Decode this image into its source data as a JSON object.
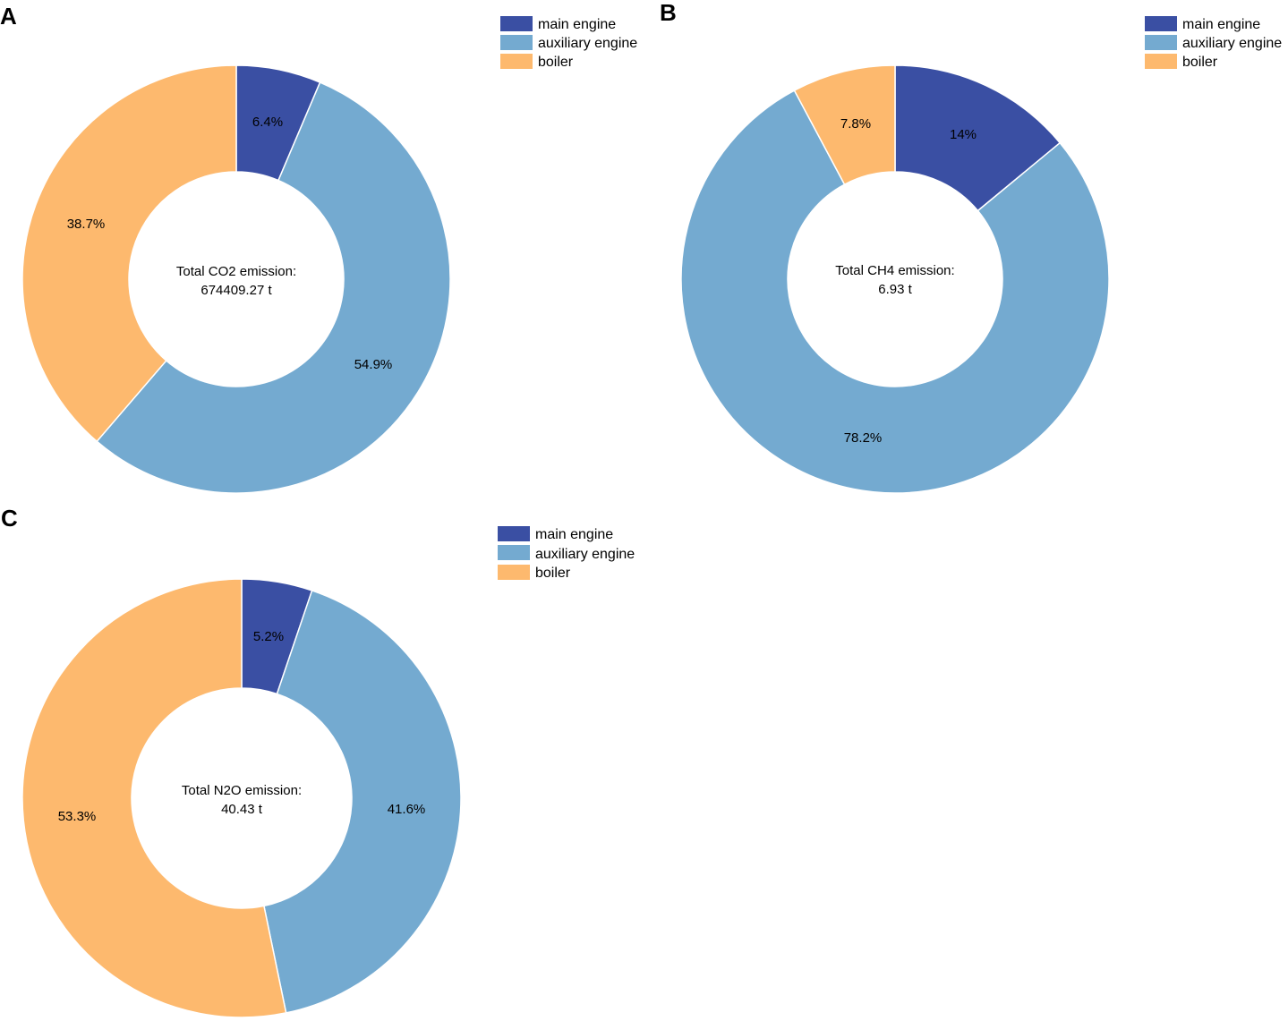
{
  "chart_data": [
    {
      "type": "pie",
      "panel": "A",
      "title": "",
      "categories": [
        "main engine",
        "auxiliary engine",
        "boiler"
      ],
      "values": [
        6.4,
        54.9,
        38.7
      ],
      "labels": [
        "6.4%",
        "54.9%",
        "38.7%"
      ],
      "center_title": "Total CO2 emission:",
      "center_value": "674409.27 t",
      "legend": [
        "main engine",
        "auxiliary engine",
        "boiler"
      ],
      "legend_position": "top-right"
    },
    {
      "type": "pie",
      "panel": "B",
      "title": "",
      "categories": [
        "main engine",
        "auxiliary engine",
        "boiler"
      ],
      "values": [
        14,
        78.2,
        7.8
      ],
      "labels": [
        "14%",
        "78.2%",
        "7.8%"
      ],
      "center_title": "Total CH4 emission:",
      "center_value": "6.93 t",
      "legend": [
        "main engine",
        "auxiliary engine",
        "boiler"
      ],
      "legend_position": "top-right"
    },
    {
      "type": "pie",
      "panel": "C",
      "title": "",
      "categories": [
        "main engine",
        "auxiliary engine",
        "boiler"
      ],
      "values": [
        5.2,
        41.6,
        53.3
      ],
      "labels": [
        "5.2%",
        "41.6%",
        "53.3%"
      ],
      "center_title": "Total N2O emission:",
      "center_value": "40.43 t",
      "legend": [
        "main engine",
        "auxiliary engine",
        "boiler"
      ],
      "legend_position": "top-right"
    }
  ],
  "colors": [
    "#3a4fa3",
    "#74aad0",
    "#fdb96e"
  ]
}
